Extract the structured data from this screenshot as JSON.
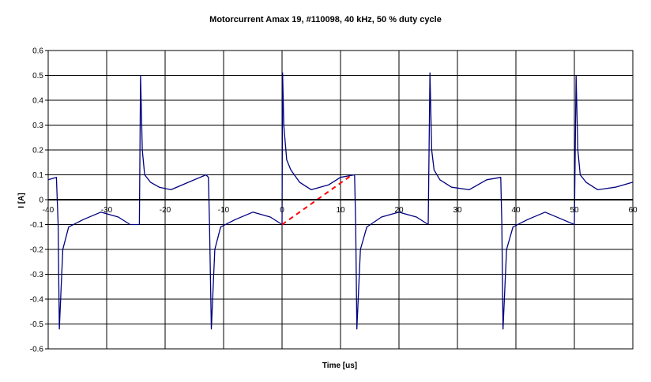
{
  "chart_data": {
    "type": "line",
    "title": "Motorcurrent Amax 19, #110098, 40 kHz, 50 % duty cycle",
    "xlabel": "Time [us]",
    "ylabel": "I [A]",
    "xlim": [
      -40,
      60
    ],
    "ylim": [
      -0.6,
      0.6
    ],
    "x_ticks": [
      -40,
      -30,
      -20,
      -10,
      0,
      10,
      20,
      30,
      40,
      50,
      60
    ],
    "y_ticks": [
      -0.6,
      -0.5,
      -0.4,
      -0.3,
      -0.2,
      -0.1,
      0,
      0.1,
      0.2,
      0.3,
      0.4,
      0.5,
      0.6
    ],
    "x_tick_labels": [
      "-40",
      "-30",
      "-20",
      "-10",
      "0",
      "10",
      "20",
      "30",
      "40",
      "50",
      "60"
    ],
    "y_tick_labels": [
      "-0.6",
      "-0.5",
      "-0.4",
      "-0.3",
      "-0.2",
      "-0.1",
      "0",
      "0.1",
      "0.2",
      "0.3",
      "0.4",
      "0.5",
      "0.6"
    ],
    "grid": true,
    "legend": "none",
    "series": [
      {
        "color": "#00007f",
        "style": "solid",
        "x": [
          -40,
          -38.6,
          -38.3,
          -38.1,
          -37.5,
          -36.5,
          -34,
          -31,
          -28,
          -26,
          -25,
          -24.4,
          -24.2,
          -23.9,
          -23.5,
          -22.5,
          -21,
          -19,
          -16,
          -13,
          -12.6,
          -12.4,
          -12.1,
          -11.5,
          -10.5,
          -8,
          -5,
          -2,
          0,
          0.1,
          0.3,
          0.8,
          1.5,
          3,
          5,
          8,
          10,
          12.4,
          12.6,
          12.8,
          13.4,
          14.5,
          17,
          20,
          23,
          25,
          25.3,
          25.6,
          26,
          27,
          29,
          32,
          35,
          37.4,
          37.6,
          37.8,
          38.4,
          39.5,
          42,
          45,
          48,
          50,
          50.3,
          50.6,
          51,
          52,
          54,
          57,
          60
        ],
        "y": [
          0.08,
          0.09,
          -0.1,
          -0.52,
          -0.2,
          -0.11,
          -0.08,
          -0.05,
          -0.07,
          -0.1,
          -0.1,
          -0.1,
          0.5,
          0.2,
          0.1,
          0.07,
          0.05,
          0.04,
          0.07,
          0.1,
          0.09,
          -0.1,
          -0.52,
          -0.2,
          -0.11,
          -0.08,
          -0.05,
          -0.07,
          -0.1,
          0.51,
          0.3,
          0.16,
          0.12,
          0.07,
          0.04,
          0.06,
          0.09,
          0.1,
          -0.1,
          -0.52,
          -0.2,
          -0.11,
          -0.07,
          -0.05,
          -0.07,
          -0.1,
          0.51,
          0.2,
          0.12,
          0.08,
          0.05,
          0.04,
          0.08,
          0.09,
          -0.1,
          -0.52,
          -0.2,
          -0.11,
          -0.08,
          -0.05,
          -0.08,
          -0.1,
          0.5,
          0.2,
          0.1,
          0.07,
          0.04,
          0.05,
          0.07
        ]
      },
      {
        "color": "#ff0000",
        "style": "dashed",
        "x": [
          0,
          12
        ],
        "y": [
          -0.1,
          0.1
        ]
      }
    ]
  }
}
